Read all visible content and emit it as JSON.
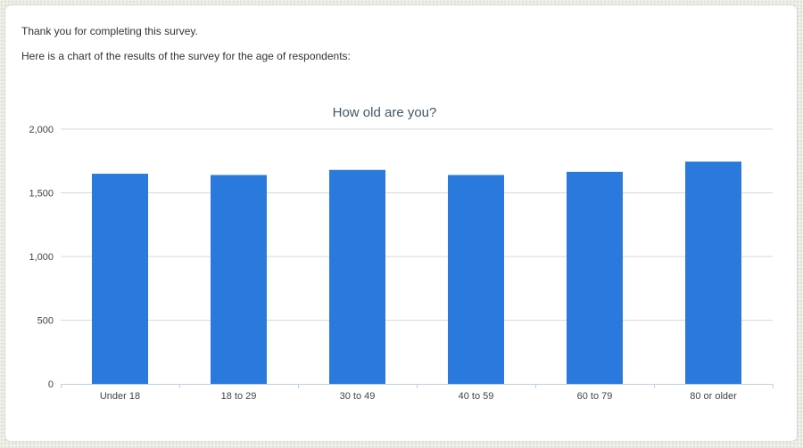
{
  "page": {
    "thank_you": "Thank you for completing this survey.",
    "intro": "Here is a chart of the results of the survey for the age of respondents:"
  },
  "colors": {
    "bar": "#2a7add",
    "grid": "#d8d8d8",
    "axis": "#c0d0e0",
    "title": "#3e576f"
  },
  "chart_data": {
    "type": "bar",
    "title": "How old are you?",
    "xlabel": "",
    "ylabel": "",
    "categories": [
      "Under 18",
      "18 to 29",
      "30 to 49",
      "40 to 59",
      "60 to 79",
      "80 or older"
    ],
    "values": [
      1650,
      1640,
      1680,
      1640,
      1665,
      1745
    ],
    "ylim": [
      0,
      2000
    ],
    "yticks": [
      0,
      500,
      1000,
      1500,
      2000
    ],
    "ytick_labels": [
      "0",
      "500",
      "1,000",
      "1,500",
      "2,000"
    ],
    "grid": true,
    "legend": "none"
  }
}
